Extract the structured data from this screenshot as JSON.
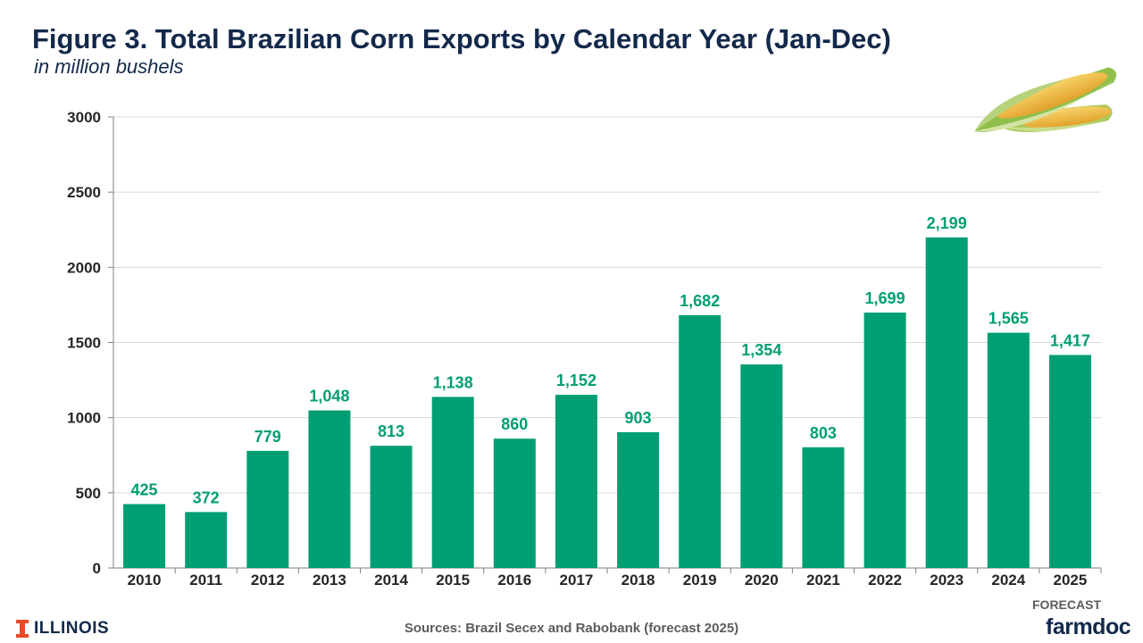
{
  "header": {
    "title": "Figure 3. Total Brazilian Corn Exports by Calendar Year (Jan-Dec)",
    "subtitle": "in million bushels"
  },
  "chart_data": {
    "type": "bar",
    "categories": [
      "2010",
      "2011",
      "2012",
      "2013",
      "2014",
      "2015",
      "2016",
      "2017",
      "2018",
      "2019",
      "2020",
      "2021",
      "2022",
      "2023",
      "2024",
      "2025"
    ],
    "values": [
      425,
      372,
      779,
      1048,
      813,
      1138,
      860,
      1152,
      903,
      1682,
      1354,
      803,
      1699,
      2199,
      1565,
      1417
    ],
    "data_labels": [
      "425",
      "372",
      "779",
      "1,048",
      "813",
      "1,138",
      "860",
      "1,152",
      "903",
      "1,682",
      "1,354",
      "803",
      "1,699",
      "2,199",
      "1,565",
      "1,417"
    ],
    "ylim": [
      0,
      3000
    ],
    "yticks": [
      0,
      500,
      1000,
      1500,
      2000,
      2500,
      3000
    ],
    "ytick_labels": [
      "0",
      "500",
      "1000",
      "1500",
      "2000",
      "2500",
      "3000"
    ],
    "grid": true,
    "bar_color": "#009e73",
    "label_color": "#009e73"
  },
  "footer": {
    "forecast_note": "FORECAST",
    "sources": "Sources: Brazil Secex and Rabobank (forecast 2025)",
    "left_logo": "ILLINOIS",
    "right_logo": "farmdoc",
    "left_logo_icon": "illinois-block-i-icon",
    "decorative_image": "corn-cobs-image"
  },
  "colors": {
    "title": "#13294b",
    "illinois_orange": "#e84a27",
    "axis_text": "#262626"
  }
}
